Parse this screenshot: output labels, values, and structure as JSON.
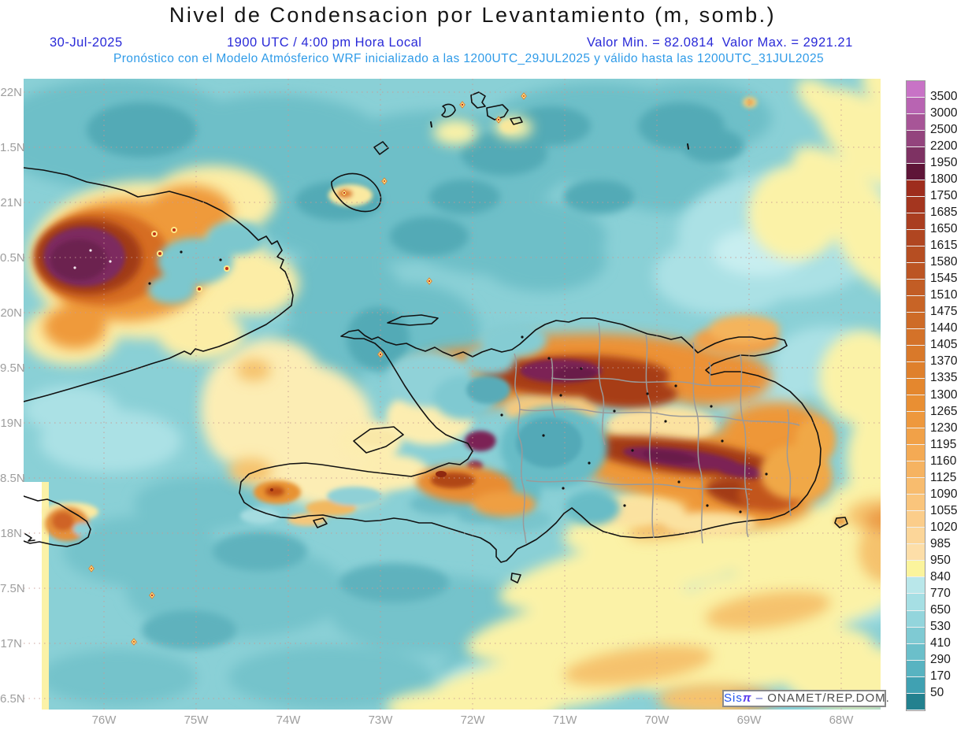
{
  "header": {
    "title": "Nivel de Condensacion por Levantamiento (m, somb.)",
    "date": "30-Jul-2025",
    "time": "1900 UTC / 4:00 pm Hora Local",
    "min_label": "Valor Min. = 82.0814",
    "max_label": "Valor Max. = 2921.21",
    "forecast_line": "Pronóstico con el Modelo Atmósferico WRF inicializado a las 1200UTC_29JUL2025 y válido hasta las  1200UTC_31JUL2025"
  },
  "attribution": {
    "sis": "Sis",
    "pi": "π",
    "dash": "–",
    "org": " ONAMET/REP.DOM."
  },
  "axes": {
    "lat_labels": [
      "22N",
      "1.5N",
      "21N",
      "0.5N",
      "20N",
      "9.5N",
      "19N",
      "8.5N",
      "18N",
      "7.5N",
      "17N",
      "6.5N"
    ],
    "lon_labels": [
      "76W",
      "75W",
      "74W",
      "73W",
      "72W",
      "71W",
      "70W",
      "69W",
      "68W"
    ]
  },
  "colorbar": {
    "levels": [
      3500,
      3000,
      2500,
      2200,
      1950,
      1800,
      1750,
      1685,
      1650,
      1615,
      1580,
      1545,
      1510,
      1475,
      1440,
      1405,
      1370,
      1335,
      1300,
      1265,
      1230,
      1195,
      1160,
      1125,
      1090,
      1055,
      1020,
      985,
      950,
      840,
      770,
      650,
      530,
      410,
      290,
      170,
      50
    ],
    "colors": [
      "#c873c6",
      "#b864b2",
      "#a75597",
      "#93447d",
      "#7e3263",
      "#5e1538",
      "#9e2d1d",
      "#a4361f",
      "#aa3e20",
      "#b04621",
      "#b64e22",
      "#bc5523",
      "#c25d25",
      "#c86426",
      "#ce6b27",
      "#d47229",
      "#d9792a",
      "#df802c",
      "#e4872e",
      "#e98f33",
      "#ee983d",
      "#f1a148",
      "#f4aa54",
      "#f6b361",
      "#f8bc6e",
      "#fac57c",
      "#fbcd8a",
      "#fcd699",
      "#fddea8",
      "#fbf49c",
      "#b9e7ea",
      "#a6dfe4",
      "#93d5dc",
      "#7fcad3",
      "#6bbfca",
      "#58b3c1",
      "#40a1b2",
      "#23818f"
    ]
  },
  "chart_data": {
    "type": "heatmap",
    "title": "Nivel de Condensacion por Levantamiento (m, somb.)",
    "field": "Lifting Condensation Level",
    "units": "m",
    "value_min": 82.0814,
    "value_max": 2921.21,
    "date": "30-Jul-2025",
    "valid_time": "1900 UTC / 4:00 pm Hora Local",
    "model": "WRF",
    "model_init": "1200UTC_29JUL2025",
    "model_valid_until": "1200UTC_31JUL2025",
    "x_ticks": [
      "76W",
      "75W",
      "74W",
      "73W",
      "72W",
      "71W",
      "70W",
      "69W",
      "68W"
    ],
    "y_ticks": [
      "22N",
      "1.5N",
      "21N",
      "0.5N",
      "20N",
      "9.5N",
      "19N",
      "8.5N",
      "18N",
      "7.5N",
      "17N",
      "6.5N"
    ],
    "colorbar_levels": [
      3500,
      3000,
      2500,
      2200,
      1950,
      1800,
      1750,
      1685,
      1650,
      1615,
      1580,
      1545,
      1510,
      1475,
      1440,
      1405,
      1370,
      1335,
      1300,
      1265,
      1230,
      1195,
      1160,
      1125,
      1090,
      1055,
      1020,
      985,
      950,
      840,
      770,
      650,
      530,
      410,
      290,
      170,
      50
    ],
    "colorbar_colors": [
      "#c873c6",
      "#b864b2",
      "#a75597",
      "#93447d",
      "#7e3263",
      "#5e1538",
      "#9e2d1d",
      "#a4361f",
      "#aa3e20",
      "#b04621",
      "#b64e22",
      "#bc5523",
      "#c25d25",
      "#c86426",
      "#ce6b27",
      "#d47229",
      "#d9792a",
      "#df802c",
      "#e4872e",
      "#e98f33",
      "#ee983d",
      "#f1a148",
      "#f4aa54",
      "#f6b361",
      "#f8bc6e",
      "#fac57c",
      "#fbcd8a",
      "#fcd699",
      "#fddea8",
      "#fbf49c",
      "#b9e7ea",
      "#a6dfe4",
      "#93d5dc",
      "#7fcad3",
      "#6bbfca",
      "#58b3c1",
      "#40a1b2",
      "#23818f"
    ],
    "legend_position": "right",
    "grid": "dotted lat-lon graticule every 0.5 deg lat / 1 deg lon",
    "region": "Hispaniola, eastern Cuba, Turks and Caicos, NE Caribbean",
    "pattern_notes": [
      "Purple maxima (>1950 m) over eastern Cuba mountains and over northern and southeastern Dominican Republic ranges",
      "Teal minima (<840 m) over open ocean and interior valleys",
      "Pale-yellow streaks (850-1100 m) over Atlantic NE corner and Caribbean SE quadrant"
    ]
  }
}
